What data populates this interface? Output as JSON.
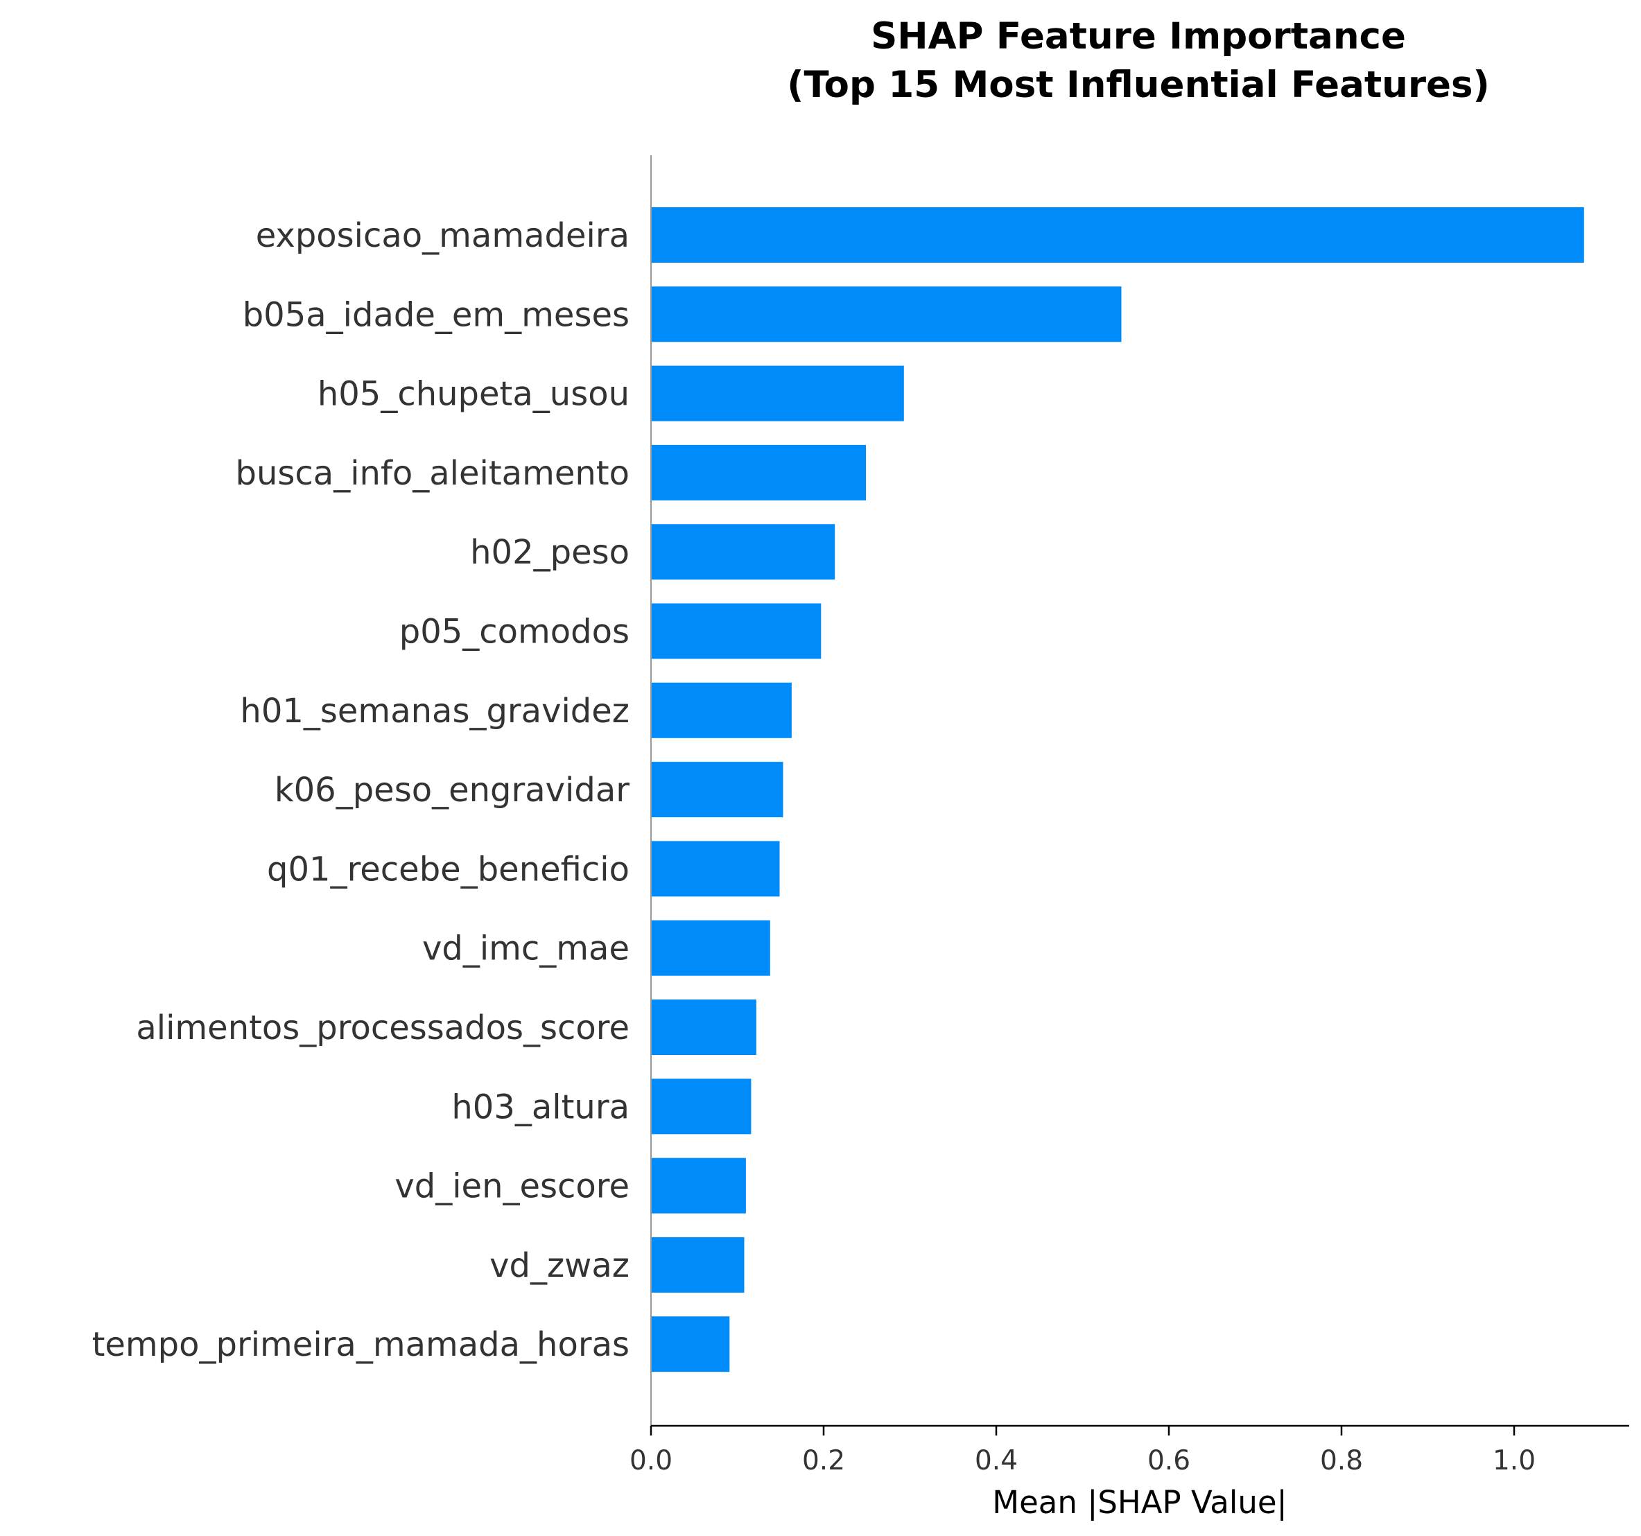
{
  "chart_data": {
    "type": "bar",
    "orientation": "horizontal",
    "title_lines": [
      "SHAP Feature Importance",
      "(Top 15 Most Influential Features)"
    ],
    "xlabel": "Mean |SHAP Value|",
    "ylabel": "",
    "xlim": [
      0,
      1.135
    ],
    "xticks": [
      0.0,
      0.2,
      0.4,
      0.6,
      0.8,
      1.0
    ],
    "xtick_labels": [
      "0.0",
      "0.2",
      "0.4",
      "0.6",
      "0.8",
      "1.0"
    ],
    "grid": false,
    "legend": "none",
    "bar_color": "#008bfb",
    "categories": [
      "exposicao_mamadeira",
      "b05a_idade_em_meses",
      "h05_chupeta_usou",
      "busca_info_aleitamento",
      "h02_peso",
      "p05_comodos",
      "h01_semanas_gravidez",
      "k06_peso_engravidar",
      "q01_recebe_beneficio",
      "vd_imc_mae",
      "alimentos_processados_score",
      "h03_altura",
      "vd_ien_escore",
      "vd_zwaz",
      "tempo_primeira_mamada_horas"
    ],
    "values": [
      1.081,
      0.545,
      0.293,
      0.249,
      0.213,
      0.197,
      0.163,
      0.153,
      0.149,
      0.138,
      0.122,
      0.116,
      0.11,
      0.108,
      0.091
    ]
  }
}
